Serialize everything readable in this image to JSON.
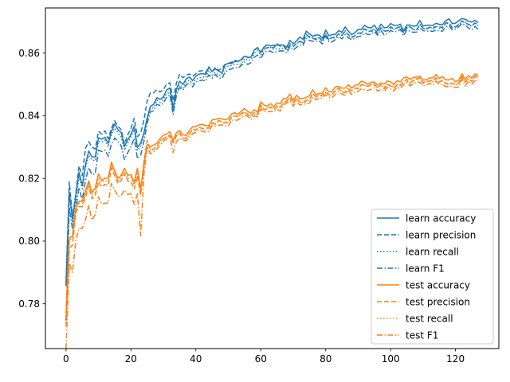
{
  "chart_data": {
    "type": "line",
    "title": "",
    "xlabel": "",
    "ylabel": "",
    "xlim": [
      -6.35,
      133.35
    ],
    "ylim": [
      0.7657,
      0.8744
    ],
    "xticks": [
      0,
      20,
      40,
      60,
      80,
      100,
      120
    ],
    "yticks": [
      0.78,
      0.8,
      0.82,
      0.84,
      0.86
    ],
    "ytick_labels": [
      "0.78",
      "0.80",
      "0.82",
      "0.84",
      "0.86"
    ],
    "grid": false,
    "legend_position": "lower-right",
    "anchor_x": [
      0,
      1,
      2,
      3,
      4,
      5,
      6,
      7,
      8,
      9,
      10,
      12,
      14,
      16,
      18,
      20,
      22,
      23,
      24,
      25,
      26,
      28,
      30,
      32,
      33,
      34,
      36,
      38,
      40,
      42,
      45,
      48,
      50,
      52,
      55,
      58,
      60,
      62,
      65,
      68,
      70,
      72,
      75,
      78,
      80,
      84,
      88,
      92,
      96,
      100,
      104,
      108,
      112,
      116,
      120,
      124,
      127
    ],
    "series": [
      {
        "name": "learn accuracy",
        "color": "#1f77b4",
        "dash": "solid",
        "values": [
          0.789,
          0.816,
          0.805,
          0.814,
          0.821,
          0.819,
          0.821,
          0.826,
          0.824,
          0.829,
          0.834,
          0.832,
          0.834,
          0.836,
          0.833,
          0.834,
          0.833,
          0.832,
          0.835,
          0.84,
          0.842,
          0.845,
          0.847,
          0.849,
          0.843,
          0.849,
          0.851,
          0.852,
          0.853,
          0.853,
          0.855,
          0.855,
          0.857,
          0.858,
          0.859,
          0.86,
          0.861,
          0.862,
          0.862,
          0.863,
          0.864,
          0.865,
          0.866,
          0.865,
          0.866,
          0.867,
          0.867,
          0.868,
          0.868,
          0.869,
          0.868,
          0.869,
          0.87,
          0.87,
          0.87,
          0.87,
          0.87
        ]
      },
      {
        "name": "learn precision",
        "color": "#1f77b4",
        "dash": "dashed",
        "values": [
          0.788,
          0.819,
          0.806,
          0.815,
          0.823,
          0.822,
          0.826,
          0.829,
          0.827,
          0.832,
          0.836,
          0.834,
          0.835,
          0.837,
          0.834,
          0.836,
          0.836,
          0.835,
          0.839,
          0.845,
          0.846,
          0.848,
          0.849,
          0.851,
          0.845,
          0.851,
          0.853,
          0.853,
          0.854,
          0.854,
          0.855,
          0.856,
          0.857,
          0.858,
          0.859,
          0.86,
          0.861,
          0.861,
          0.862,
          0.862,
          0.863,
          0.864,
          0.865,
          0.864,
          0.865,
          0.866,
          0.866,
          0.867,
          0.867,
          0.868,
          0.867,
          0.868,
          0.869,
          0.869,
          0.869,
          0.869,
          0.869
        ]
      },
      {
        "name": "learn recall",
        "color": "#1f77b4",
        "dash": "dotted",
        "values": [
          0.788,
          0.815,
          0.804,
          0.813,
          0.82,
          0.818,
          0.82,
          0.825,
          0.823,
          0.828,
          0.833,
          0.831,
          0.833,
          0.835,
          0.832,
          0.833,
          0.832,
          0.831,
          0.834,
          0.839,
          0.841,
          0.844,
          0.846,
          0.848,
          0.842,
          0.848,
          0.85,
          0.851,
          0.852,
          0.852,
          0.854,
          0.854,
          0.856,
          0.857,
          0.858,
          0.859,
          0.86,
          0.861,
          0.861,
          0.862,
          0.863,
          0.864,
          0.865,
          0.864,
          0.865,
          0.866,
          0.866,
          0.867,
          0.867,
          0.868,
          0.867,
          0.868,
          0.869,
          0.869,
          0.869,
          0.869,
          0.869
        ]
      },
      {
        "name": "learn F1",
        "color": "#1f77b4",
        "dash": "dashdot",
        "values": [
          0.777,
          0.811,
          0.802,
          0.81,
          0.816,
          0.814,
          0.816,
          0.821,
          0.818,
          0.824,
          0.83,
          0.828,
          0.83,
          0.832,
          0.829,
          0.83,
          0.829,
          0.828,
          0.832,
          0.838,
          0.84,
          0.843,
          0.845,
          0.847,
          0.841,
          0.847,
          0.849,
          0.85,
          0.851,
          0.851,
          0.853,
          0.853,
          0.855,
          0.856,
          0.857,
          0.858,
          0.859,
          0.86,
          0.86,
          0.861,
          0.862,
          0.863,
          0.864,
          0.863,
          0.864,
          0.865,
          0.865,
          0.866,
          0.866,
          0.867,
          0.866,
          0.867,
          0.868,
          0.868,
          0.868,
          0.868,
          0.868
        ]
      },
      {
        "name": "test accuracy",
        "color": "#ff7f0e",
        "dash": "solid",
        "values": [
          0.78,
          0.803,
          0.8,
          0.808,
          0.812,
          0.81,
          0.813,
          0.816,
          0.815,
          0.818,
          0.822,
          0.82,
          0.822,
          0.823,
          0.82,
          0.822,
          0.82,
          0.815,
          0.825,
          0.83,
          0.83,
          0.832,
          0.833,
          0.834,
          0.832,
          0.834,
          0.835,
          0.835,
          0.836,
          0.837,
          0.838,
          0.839,
          0.84,
          0.841,
          0.842,
          0.842,
          0.843,
          0.843,
          0.844,
          0.845,
          0.846,
          0.846,
          0.847,
          0.847,
          0.848,
          0.849,
          0.849,
          0.85,
          0.85,
          0.851,
          0.851,
          0.852,
          0.852,
          0.852,
          0.852,
          0.853,
          0.852
        ]
      },
      {
        "name": "test precision",
        "color": "#ff7f0e",
        "dash": "dashed",
        "values": [
          0.776,
          0.8,
          0.797,
          0.806,
          0.81,
          0.808,
          0.811,
          0.814,
          0.813,
          0.816,
          0.82,
          0.818,
          0.82,
          0.821,
          0.818,
          0.82,
          0.818,
          0.813,
          0.826,
          0.831,
          0.829,
          0.831,
          0.832,
          0.833,
          0.831,
          0.833,
          0.834,
          0.834,
          0.835,
          0.836,
          0.837,
          0.838,
          0.839,
          0.84,
          0.841,
          0.841,
          0.842,
          0.842,
          0.843,
          0.844,
          0.845,
          0.845,
          0.846,
          0.846,
          0.847,
          0.848,
          0.848,
          0.849,
          0.849,
          0.85,
          0.85,
          0.851,
          0.851,
          0.851,
          0.851,
          0.852,
          0.851
        ]
      },
      {
        "name": "test recall",
        "color": "#ff7f0e",
        "dash": "dotted",
        "values": [
          0.779,
          0.802,
          0.799,
          0.807,
          0.811,
          0.809,
          0.812,
          0.815,
          0.814,
          0.817,
          0.821,
          0.819,
          0.821,
          0.822,
          0.819,
          0.821,
          0.819,
          0.814,
          0.824,
          0.829,
          0.829,
          0.831,
          0.832,
          0.833,
          0.831,
          0.833,
          0.834,
          0.834,
          0.835,
          0.836,
          0.837,
          0.838,
          0.839,
          0.84,
          0.841,
          0.841,
          0.842,
          0.842,
          0.843,
          0.844,
          0.845,
          0.845,
          0.846,
          0.846,
          0.847,
          0.848,
          0.848,
          0.849,
          0.849,
          0.85,
          0.85,
          0.851,
          0.851,
          0.851,
          0.851,
          0.852,
          0.851
        ]
      },
      {
        "name": "test F1",
        "color": "#ff7f0e",
        "dash": "dashdot",
        "values": [
          0.769,
          0.795,
          0.788,
          0.797,
          0.803,
          0.801,
          0.804,
          0.808,
          0.806,
          0.81,
          0.815,
          0.812,
          0.815,
          0.817,
          0.813,
          0.816,
          0.812,
          0.8,
          0.822,
          0.829,
          0.828,
          0.83,
          0.831,
          0.832,
          0.828,
          0.831,
          0.833,
          0.833,
          0.834,
          0.835,
          0.836,
          0.837,
          0.838,
          0.839,
          0.84,
          0.84,
          0.841,
          0.841,
          0.842,
          0.843,
          0.844,
          0.844,
          0.845,
          0.845,
          0.846,
          0.847,
          0.847,
          0.848,
          0.848,
          0.849,
          0.849,
          0.85,
          0.85,
          0.85,
          0.85,
          0.851,
          0.85
        ]
      }
    ]
  }
}
